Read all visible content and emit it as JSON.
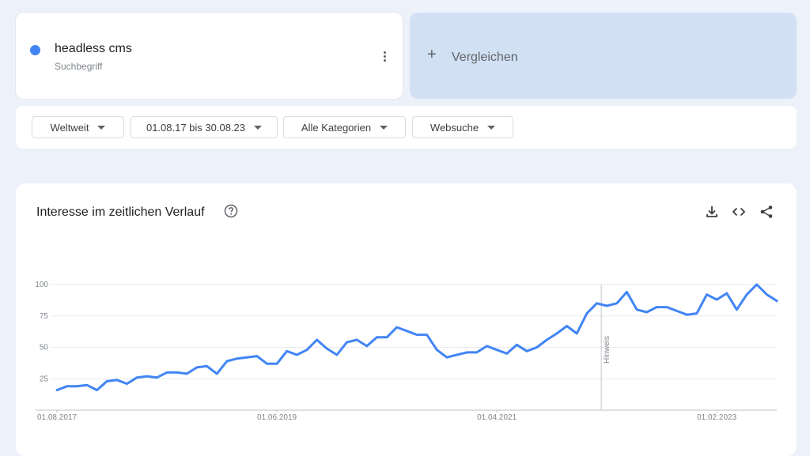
{
  "term": {
    "name": "headless cms",
    "type": "Suchbegriff",
    "color": "#4285f4"
  },
  "compare": {
    "label": "Vergleichen",
    "icon": "plus-icon"
  },
  "filters": {
    "region": "Weltweit",
    "date_range": "01.08.17 bis 30.08.23",
    "category": "Alle Kategorien",
    "search_type": "Websuche"
  },
  "chart": {
    "title": "Interesse im zeitlichen Verlauf",
    "icons": [
      "help-icon",
      "download-icon",
      "embed-icon",
      "share-icon"
    ]
  },
  "chart_data": {
    "type": "line",
    "title": "Interesse im zeitlichen Verlauf",
    "xlabel": "",
    "ylabel": "",
    "ylim": [
      0,
      100
    ],
    "y_ticks": [
      25,
      50,
      75,
      100
    ],
    "x_ticks": [
      "01.08.2017",
      "01.06.2019",
      "01.04.2021",
      "01.02.2023"
    ],
    "grid": true,
    "series_color": "#4285f4",
    "annotation": {
      "label": "Hinweis",
      "index": 55
    },
    "series": [
      {
        "values": [
          16,
          19,
          19,
          20,
          16,
          23,
          24,
          21,
          26,
          27,
          26,
          30,
          30,
          29,
          34,
          35,
          29,
          39,
          41,
          42,
          43,
          37,
          37,
          47,
          44,
          48,
          56,
          49,
          44,
          54,
          56,
          51,
          58,
          58,
          66,
          63,
          60,
          60,
          48,
          42,
          44,
          46,
          46,
          51,
          48,
          45,
          52,
          47,
          50,
          56,
          61,
          67,
          61,
          77,
          85,
          83,
          85,
          94,
          80,
          78,
          82,
          82,
          79,
          76,
          77,
          92,
          88,
          93,
          80,
          92,
          100,
          92,
          87
        ]
      }
    ]
  }
}
